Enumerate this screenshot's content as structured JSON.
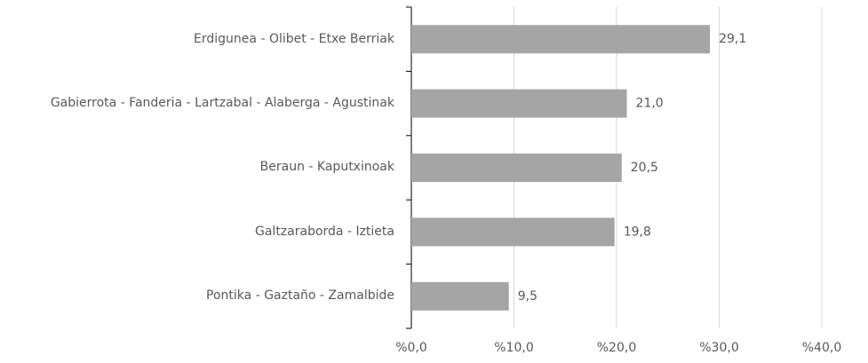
{
  "chart_data": {
    "type": "bar",
    "orientation": "horizontal",
    "categories": [
      "Erdigunea - Olibet - Etxe Berriak",
      "Gabierrota - Fanderia - Lartzabal - Alaberga - Agustinak",
      "Beraun - Kaputxinoak",
      "Galtzaraborda - Iztieta",
      "Pontika - Gaztaño - Zamalbide"
    ],
    "values": [
      29.1,
      21.0,
      20.5,
      19.8,
      9.5
    ],
    "value_labels": [
      "29,1",
      "21,0",
      "20,5",
      "19,8",
      "9,5"
    ],
    "color": "#a5a5a5",
    "xlim": [
      0,
      40
    ],
    "xticks": [
      {
        "value": 0,
        "label": "%0,0"
      },
      {
        "value": 10,
        "label": "%10,0"
      },
      {
        "value": 20,
        "label": "%20,0"
      },
      {
        "value": 30,
        "label": "%30,0"
      },
      {
        "value": 40,
        "label": "%40,0"
      }
    ],
    "grid": true
  }
}
